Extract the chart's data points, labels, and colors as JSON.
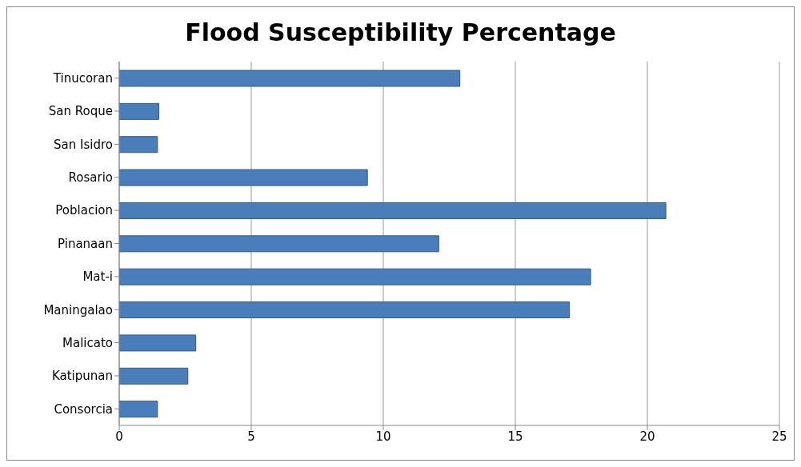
{
  "chart_data": {
    "type": "bar",
    "orientation": "horizontal",
    "title": "Flood Susceptibility Percentage",
    "categories": [
      "Tinucoran",
      "San Roque",
      "San Isidro",
      "Rosario",
      "Poblacion",
      "Pinanaan",
      "Mat-i",
      "Maningalao",
      "Malicato",
      "Katipunan",
      "Consorcia"
    ],
    "values": [
      12.9,
      1.5,
      1.45,
      9.4,
      20.7,
      12.1,
      17.85,
      17.05,
      2.9,
      2.6,
      1.45
    ],
    "color": "#4a7ebb",
    "xlim": [
      0,
      25
    ],
    "xticks": [
      0,
      5,
      10,
      15,
      20,
      25
    ],
    "grid": "x"
  }
}
